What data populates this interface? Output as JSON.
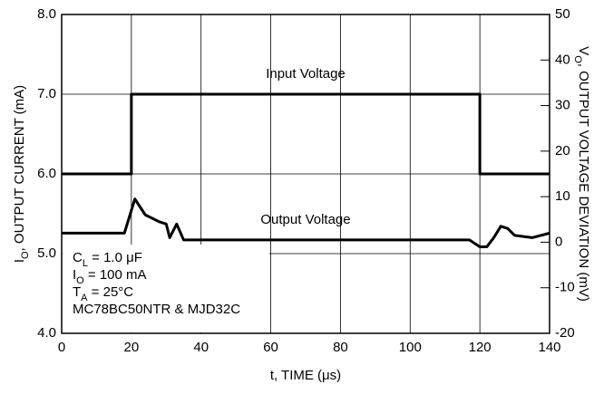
{
  "chart_data": {
    "type": "line",
    "x_label": "t, TIME (μs)",
    "y_label": {
      "main": "I",
      "sub": "O",
      "rest": ", OUTPUT CURRENT (mA)"
    },
    "y2_label": {
      "main": "V",
      "sub": "O",
      "rest": ", OUTPUT VOLTAGE DEVIATION (mV)"
    },
    "xlim": [
      0,
      140
    ],
    "xticks": [
      0,
      20,
      40,
      60,
      80,
      100,
      120,
      140
    ],
    "ylim": [
      4,
      8
    ],
    "yticks": [
      {
        "value": 4,
        "label": "4.0"
      },
      {
        "value": 5,
        "label": "5.0"
      },
      {
        "value": 6,
        "label": "6.0"
      },
      {
        "value": 7,
        "label": "7.0"
      },
      {
        "value": 8,
        "label": "8.0"
      }
    ],
    "y2lim": [
      -20,
      50
    ],
    "y2ticks": [
      -20,
      -10,
      0,
      10,
      20,
      30,
      40,
      50
    ],
    "grid": true,
    "series": [
      {
        "name": "Input Voltage",
        "color": "#000000",
        "x": [
          0,
          20,
          20,
          120,
          120,
          140
        ],
        "values": [
          6,
          6,
          7,
          7,
          6,
          6
        ]
      },
      {
        "name": "Output Voltage",
        "color": "#000000",
        "axis": "y2",
        "x": [
          0,
          18,
          21,
          24,
          28,
          30,
          31,
          33,
          35,
          40,
          60,
          100,
          117,
          120,
          122,
          124,
          126,
          128,
          130,
          135,
          140
        ],
        "values": [
          2,
          2,
          9.5,
          6,
          4.5,
          4,
          1,
          4,
          0.5,
          0.5,
          0.5,
          0.5,
          0.5,
          -1,
          -1,
          1,
          3.5,
          3,
          1.5,
          1,
          2
        ]
      }
    ],
    "annotations": [
      {
        "main": "C",
        "sub": "L",
        "rest": " = 1.0 μF"
      },
      {
        "main": "I",
        "sub": "O",
        "rest": " = 100 mA"
      },
      {
        "main": "T",
        "sub": "A",
        "rest": " = 25°C"
      },
      {
        "main": "MC78BC50NTR & MJD32C",
        "sub": "",
        "rest": ""
      }
    ]
  }
}
